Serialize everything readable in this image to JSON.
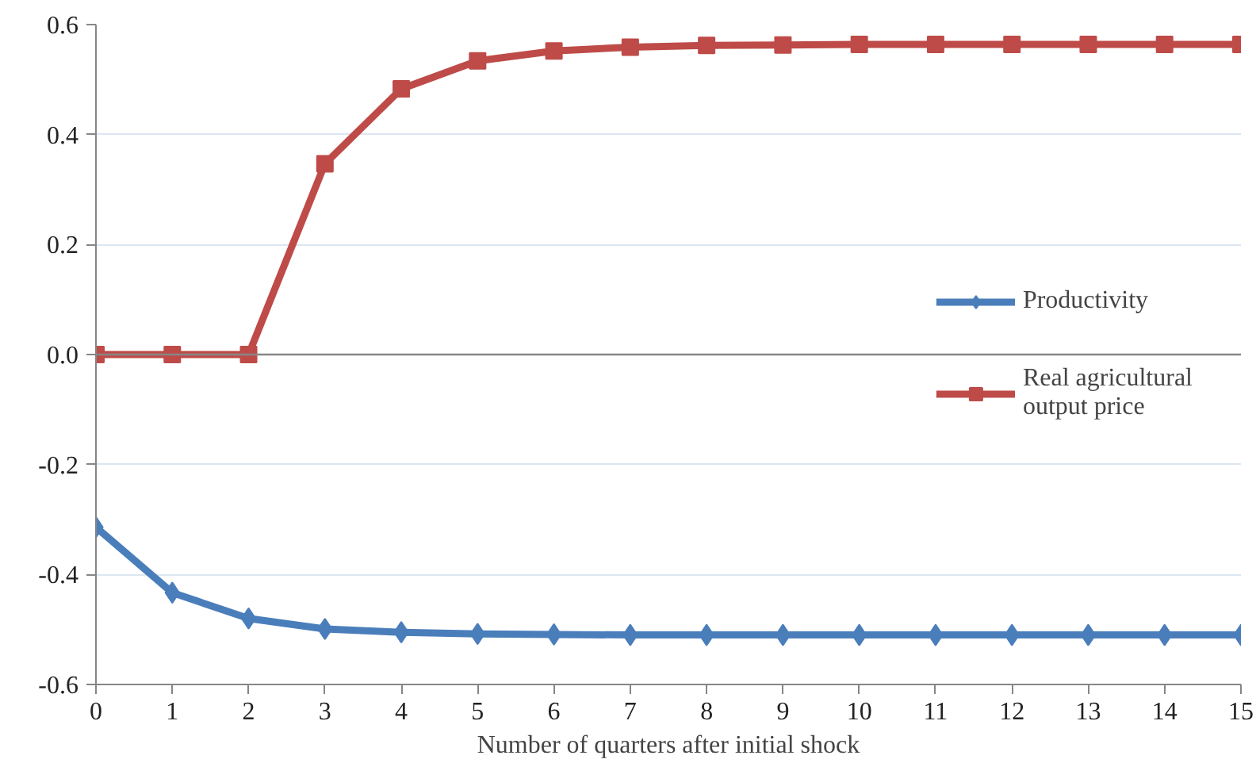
{
  "chart_data": {
    "type": "line",
    "xlabel": "Number of quarters after initial shock",
    "x": [
      0,
      1,
      2,
      3,
      4,
      5,
      6,
      7,
      8,
      9,
      10,
      11,
      12,
      13,
      14,
      15
    ],
    "series": [
      {
        "name": "Productivity",
        "color": "#4a7ebb",
        "marker": "diamond",
        "values": [
          -0.314,
          -0.433,
          -0.48,
          -0.499,
          -0.505,
          -0.508,
          -0.509,
          -0.51,
          -0.51,
          -0.51,
          -0.51,
          -0.51,
          -0.51,
          -0.51,
          -0.51,
          -0.51
        ]
      },
      {
        "name": "Real agricultural output price",
        "color": "#be4b48",
        "marker": "square",
        "values": [
          0,
          0,
          0,
          0.347,
          0.483,
          0.534,
          0.552,
          0.559,
          0.562,
          0.563,
          0.564,
          0.564,
          0.564,
          0.564,
          0.564,
          0.564
        ]
      }
    ],
    "xlim": [
      0,
      15
    ],
    "xticks": [
      0,
      1,
      2,
      3,
      4,
      5,
      6,
      7,
      8,
      9,
      10,
      11,
      12,
      13,
      14,
      15
    ],
    "ylim": [
      -0.6,
      0.6
    ],
    "yticks": [
      -0.6,
      -0.4,
      -0.2,
      {
        "value": 0,
        "label": "0.0"
      },
      0.2,
      0.4,
      0.6
    ],
    "ref_lines": [
      {
        "axis": "y",
        "value": 0,
        "color": "#868686"
      }
    ],
    "grid": "y",
    "legend": "right",
    "line_style": "solid"
  }
}
